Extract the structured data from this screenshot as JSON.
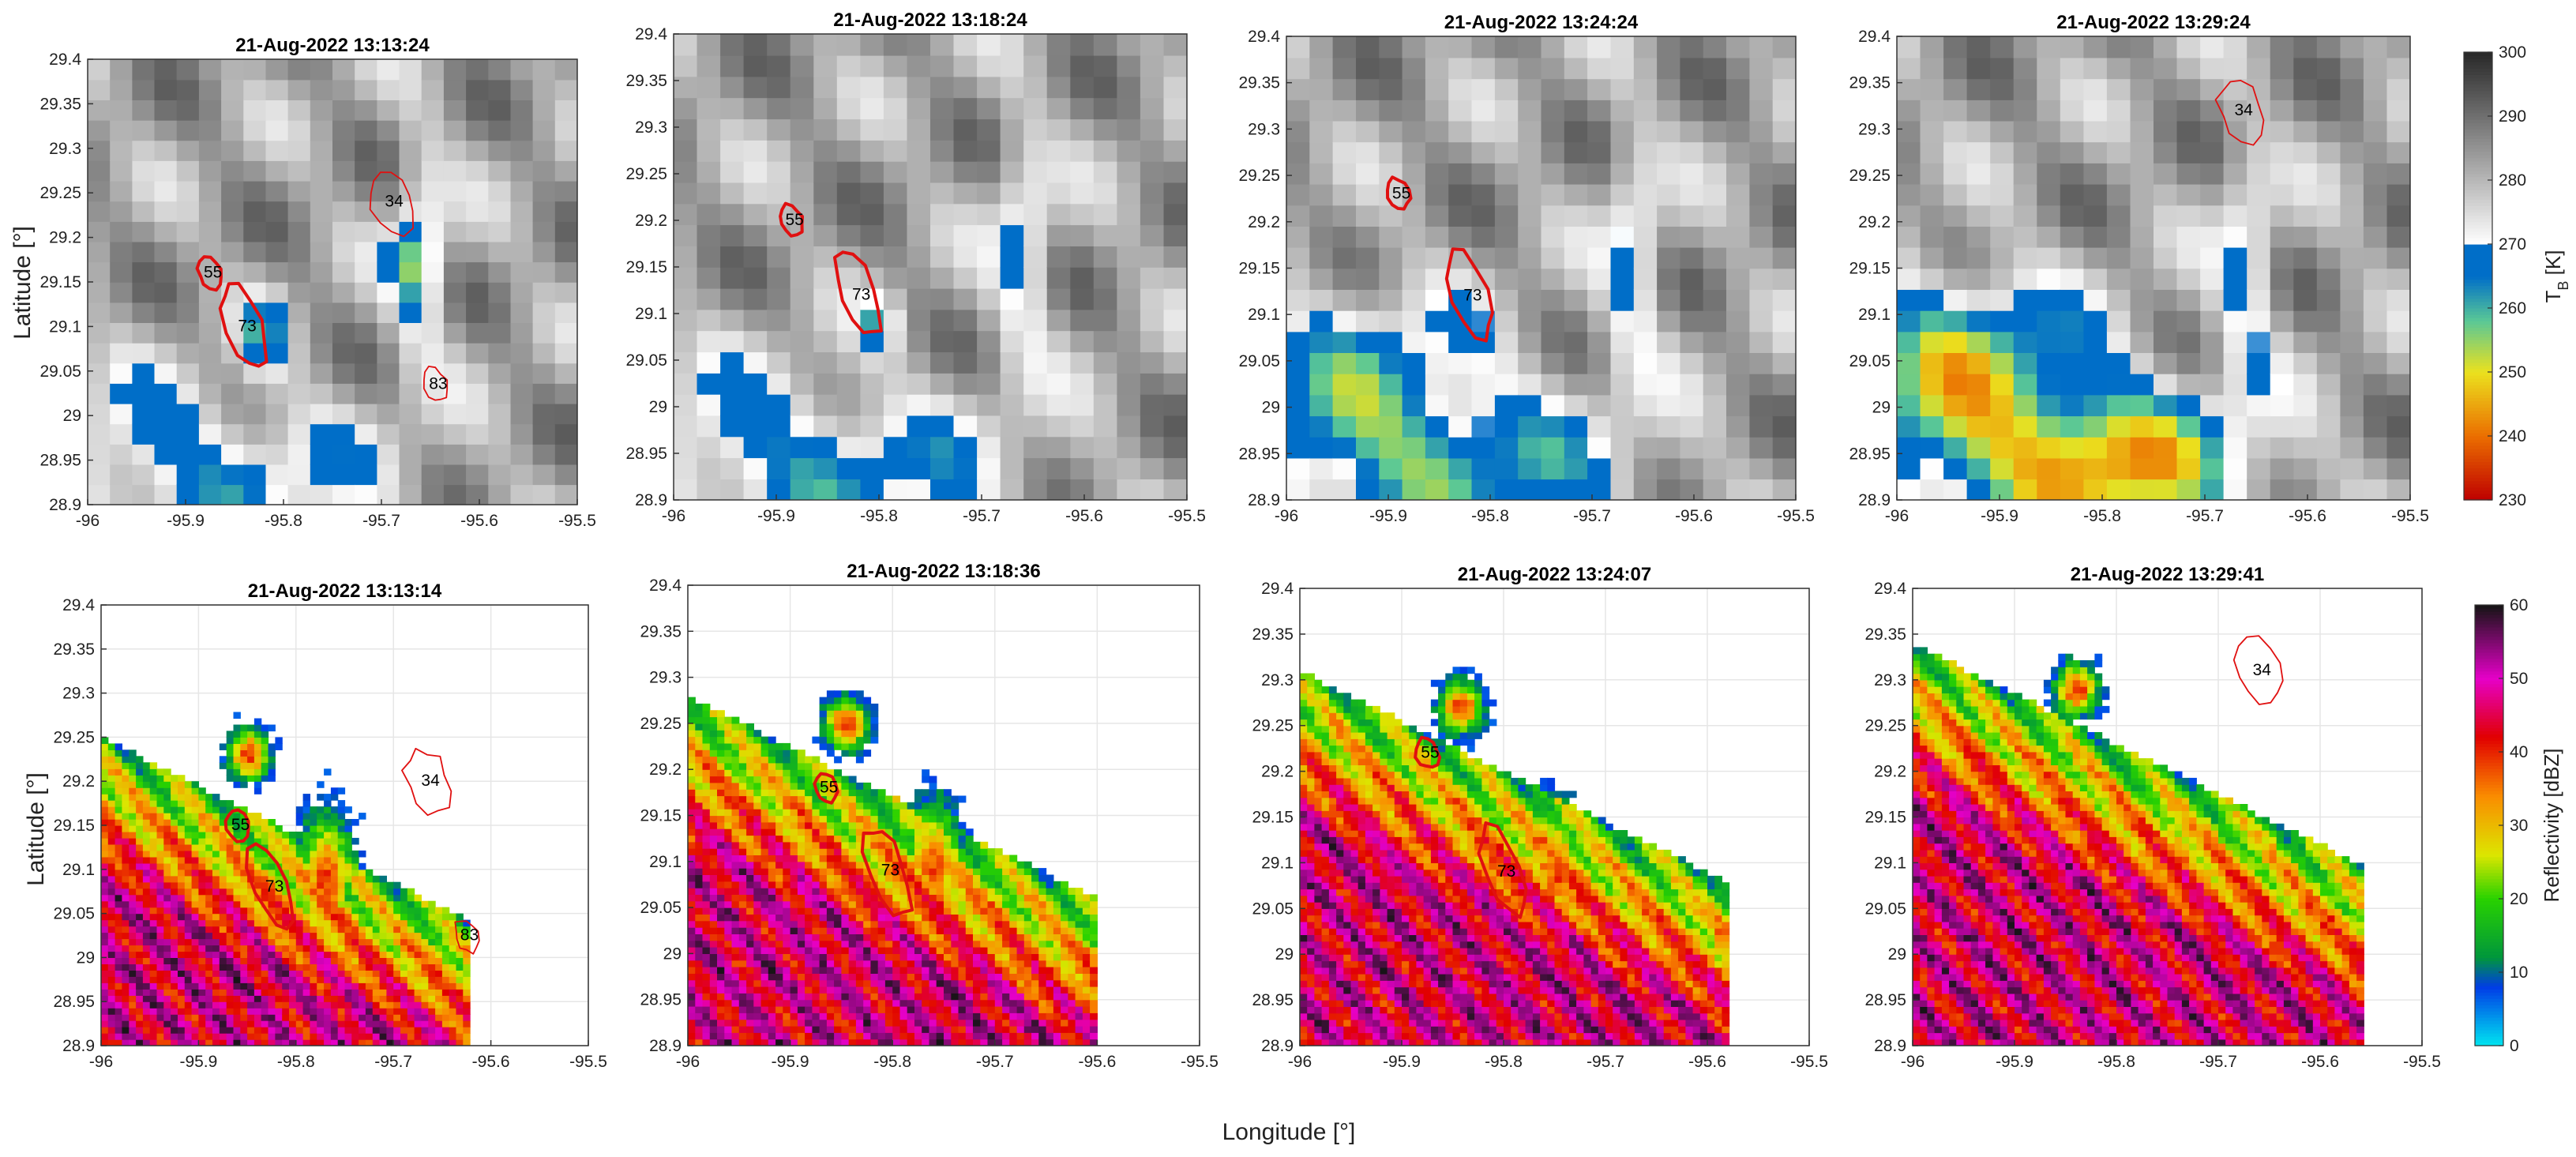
{
  "figure": {
    "xlabel": "Longitude [°]",
    "ylabel": "Latitude [°]"
  },
  "colorbars": {
    "tb": {
      "label": "T",
      "label_sub": "B",
      "label_unit": " [K]",
      "range": [
        230,
        300
      ],
      "ticks": [
        "230",
        "240",
        "250",
        "260",
        "270",
        "280",
        "290",
        "300"
      ]
    },
    "refl": {
      "label": "Reflectivity [dBZ]",
      "range": [
        0,
        60
      ],
      "ticks": [
        "0",
        "10",
        "20",
        "30",
        "40",
        "50",
        "60"
      ]
    }
  },
  "colors": {
    "contour": "#e01010",
    "grid": "#e6e6e6",
    "axis": "#333333"
  },
  "chart_data": [
    {
      "type": "heatmap",
      "variable": "brightness temperature",
      "title": "21-Aug-2022 13:13:24",
      "xlim": [
        -96,
        -95.5
      ],
      "ylim": [
        28.9,
        29.4
      ],
      "xticks": [
        "-96",
        "-95.9",
        "-95.8",
        "-95.7",
        "-95.6",
        "-95.5"
      ],
      "yticks": [
        "28.9",
        "28.95",
        "29",
        "29.05",
        "29.1",
        "29.15",
        "29.2",
        "29.25",
        "29.3",
        "29.35",
        "29.4"
      ],
      "cells": [
        {
          "id": "55",
          "x": -95.875,
          "y": 29.16
        },
        {
          "id": "73",
          "x": -95.84,
          "y": 29.1
        },
        {
          "id": "34",
          "x": -95.69,
          "y": 29.24
        },
        {
          "id": "83",
          "x": -95.645,
          "y": 29.035
        }
      ]
    },
    {
      "type": "heatmap",
      "variable": "brightness temperature",
      "title": "21-Aug-2022 13:18:24",
      "xlim": [
        -96,
        -95.5
      ],
      "ylim": [
        28.9,
        29.4
      ],
      "xticks": [
        "-96",
        "-95.9",
        "-95.8",
        "-95.7",
        "-95.6",
        "-95.5"
      ],
      "yticks": [
        "28.9",
        "28.95",
        "29",
        "29.05",
        "29.1",
        "29.15",
        "29.2",
        "29.25",
        "29.3",
        "29.35",
        "29.4"
      ],
      "cells": [
        {
          "id": "55",
          "x": -95.885,
          "y": 29.2
        },
        {
          "id": "73",
          "x": -95.82,
          "y": 29.12
        }
      ]
    },
    {
      "type": "heatmap",
      "variable": "brightness temperature",
      "title": "21-Aug-2022 13:24:24",
      "xlim": [
        -96,
        -95.5
      ],
      "ylim": [
        28.9,
        29.4
      ],
      "xticks": [
        "-96",
        "-95.9",
        "-95.8",
        "-95.7",
        "-95.6",
        "-95.5"
      ],
      "yticks": [
        "28.9",
        "28.95",
        "29",
        "29.05",
        "29.1",
        "29.15",
        "29.2",
        "29.25",
        "29.3",
        "29.35",
        "29.4"
      ],
      "cells": [
        {
          "id": "55",
          "x": -95.89,
          "y": 29.23
        },
        {
          "id": "73",
          "x": -95.82,
          "y": 29.12
        }
      ]
    },
    {
      "type": "heatmap",
      "variable": "brightness temperature",
      "title": "21-Aug-2022 13:29:24",
      "xlim": [
        -96,
        -95.5
      ],
      "ylim": [
        28.9,
        29.4
      ],
      "xticks": [
        "-96",
        "-95.9",
        "-95.8",
        "-95.7",
        "-95.6",
        "-95.5"
      ],
      "yticks": [
        "28.9",
        "28.95",
        "29",
        "29.05",
        "29.1",
        "29.15",
        "29.2",
        "29.25",
        "29.3",
        "29.35",
        "29.4"
      ],
      "cells": [
        {
          "id": "34",
          "x": -95.665,
          "y": 29.32
        }
      ]
    },
    {
      "type": "heatmap",
      "variable": "radar reflectivity",
      "title": "21-Aug-2022 13:13:14",
      "xlim": [
        -96,
        -95.5
      ],
      "ylim": [
        28.9,
        29.4
      ],
      "xticks": [
        "-96",
        "-95.9",
        "-95.8",
        "-95.7",
        "-95.6",
        "-95.5"
      ],
      "yticks": [
        "28.9",
        "28.95",
        "29",
        "29.05",
        "29.1",
        "29.15",
        "29.2",
        "29.25",
        "29.3",
        "29.35",
        "29.4"
      ],
      "cells": [
        {
          "id": "55",
          "x": -95.86,
          "y": 29.15
        },
        {
          "id": "73",
          "x": -95.825,
          "y": 29.08
        },
        {
          "id": "34",
          "x": -95.665,
          "y": 29.2
        },
        {
          "id": "83",
          "x": -95.625,
          "y": 29.025
        }
      ]
    },
    {
      "type": "heatmap",
      "variable": "radar reflectivity",
      "title": "21-Aug-2022 13:18:36",
      "xlim": [
        -96,
        -95.5
      ],
      "ylim": [
        28.9,
        29.4
      ],
      "xticks": [
        "-96",
        "-95.9",
        "-95.8",
        "-95.7",
        "-95.6",
        "-95.5"
      ],
      "yticks": [
        "28.9",
        "28.95",
        "29",
        "29.05",
        "29.1",
        "29.15",
        "29.2",
        "29.25",
        "29.3",
        "29.35",
        "29.4"
      ],
      "cells": [
        {
          "id": "55",
          "x": -95.865,
          "y": 29.18
        },
        {
          "id": "73",
          "x": -95.805,
          "y": 29.09
        }
      ]
    },
    {
      "type": "heatmap",
      "variable": "radar reflectivity",
      "title": "21-Aug-2022 13:24:07",
      "xlim": [
        -96,
        -95.5
      ],
      "ylim": [
        28.9,
        29.4
      ],
      "xticks": [
        "-96",
        "-95.9",
        "-95.8",
        "-95.7",
        "-95.6",
        "-95.5"
      ],
      "yticks": [
        "28.9",
        "28.95",
        "29",
        "29.05",
        "29.1",
        "29.15",
        "29.2",
        "29.25",
        "29.3",
        "29.35",
        "29.4"
      ],
      "cells": [
        {
          "id": "55",
          "x": -95.875,
          "y": 29.22
        },
        {
          "id": "73",
          "x": -95.8,
          "y": 29.09
        }
      ]
    },
    {
      "type": "heatmap",
      "variable": "radar reflectivity",
      "title": "21-Aug-2022 13:29:41",
      "xlim": [
        -96,
        -95.5
      ],
      "ylim": [
        28.9,
        29.4
      ],
      "xticks": [
        "-96",
        "-95.9",
        "-95.8",
        "-95.7",
        "-95.6",
        "-95.5"
      ],
      "yticks": [
        "28.9",
        "28.95",
        "29",
        "29.05",
        "29.1",
        "29.15",
        "29.2",
        "29.25",
        "29.3",
        "29.35",
        "29.4"
      ],
      "cells": [
        {
          "id": "34",
          "x": -95.66,
          "y": 29.31
        }
      ]
    }
  ]
}
